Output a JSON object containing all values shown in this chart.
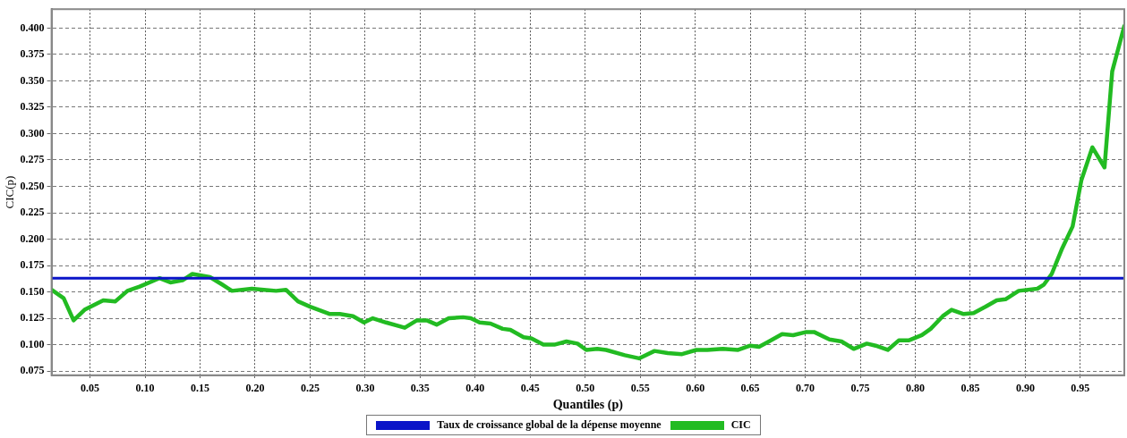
{
  "chart_data": {
    "type": "line",
    "xlabel": "Quantiles (p)",
    "ylabel": "CIC(p)",
    "xlim": [
      0.015,
      0.99
    ],
    "ylim": [
      0.071,
      0.418
    ],
    "xticks": [
      {
        "value": 0.05,
        "label": "0.05"
      },
      {
        "value": 0.1,
        "label": "0.10"
      },
      {
        "value": 0.15,
        "label": "0.15"
      },
      {
        "value": 0.2,
        "label": "0.20"
      },
      {
        "value": 0.25,
        "label": "0.25"
      },
      {
        "value": 0.3,
        "label": "0.30"
      },
      {
        "value": 0.35,
        "label": "0.35"
      },
      {
        "value": 0.4,
        "label": "0.40"
      },
      {
        "value": 0.45,
        "label": "0.45"
      },
      {
        "value": 0.5,
        "label": "0.50"
      },
      {
        "value": 0.55,
        "label": "0.55"
      },
      {
        "value": 0.6,
        "label": "0.60"
      },
      {
        "value": 0.65,
        "label": "0.65"
      },
      {
        "value": 0.7,
        "label": "0.70"
      },
      {
        "value": 0.75,
        "label": "0.75"
      },
      {
        "value": 0.8,
        "label": "0.80"
      },
      {
        "value": 0.85,
        "label": "0.85"
      },
      {
        "value": 0.9,
        "label": "0.90"
      },
      {
        "value": 0.95,
        "label": "0.95"
      }
    ],
    "yticks": [
      {
        "value": 0.075,
        "label": "0.075"
      },
      {
        "value": 0.1,
        "label": "0.100"
      },
      {
        "value": 0.125,
        "label": "0.125"
      },
      {
        "value": 0.15,
        "label": "0.150"
      },
      {
        "value": 0.175,
        "label": "0.175"
      },
      {
        "value": 0.2,
        "label": "0.200"
      },
      {
        "value": 0.225,
        "label": "0.225"
      },
      {
        "value": 0.25,
        "label": "0.250"
      },
      {
        "value": 0.275,
        "label": "0.275"
      },
      {
        "value": 0.3,
        "label": "0.300"
      },
      {
        "value": 0.325,
        "label": "0.325"
      },
      {
        "value": 0.35,
        "label": "0.350"
      },
      {
        "value": 0.375,
        "label": "0.375"
      },
      {
        "value": 0.4,
        "label": "0.400"
      }
    ],
    "grid": true,
    "legend": "bottom",
    "marker": "none",
    "line_style": "solid",
    "series": [
      {
        "name": "Taux de croissance global de la dépense moyenne",
        "color": "#0a14c8",
        "x": [
          0.015,
          0.99
        ],
        "values": [
          0.163,
          0.163
        ]
      },
      {
        "name": "CIC",
        "color": "#22bb22",
        "x": [
          0.015,
          0.026,
          0.035,
          0.045,
          0.062,
          0.073,
          0.084,
          0.095,
          0.113,
          0.123,
          0.134,
          0.143,
          0.159,
          0.17,
          0.179,
          0.197,
          0.208,
          0.219,
          0.228,
          0.239,
          0.25,
          0.268,
          0.277,
          0.289,
          0.299,
          0.307,
          0.319,
          0.336,
          0.347,
          0.356,
          0.365,
          0.376,
          0.389,
          0.396,
          0.404,
          0.414,
          0.425,
          0.432,
          0.444,
          0.451,
          0.462,
          0.472,
          0.483,
          0.493,
          0.501,
          0.511,
          0.519,
          0.536,
          0.549,
          0.563,
          0.575,
          0.588,
          0.601,
          0.611,
          0.625,
          0.639,
          0.65,
          0.658,
          0.667,
          0.679,
          0.689,
          0.701,
          0.708,
          0.722,
          0.733,
          0.744,
          0.756,
          0.764,
          0.775,
          0.785,
          0.794,
          0.806,
          0.814,
          0.825,
          0.833,
          0.844,
          0.853,
          0.864,
          0.874,
          0.882,
          0.894,
          0.911,
          0.917,
          0.924,
          0.933,
          0.943,
          0.951,
          0.961,
          0.972,
          0.979,
          0.99
        ],
        "values": [
          0.152,
          0.144,
          0.123,
          0.133,
          0.142,
          0.141,
          0.151,
          0.155,
          0.163,
          0.159,
          0.161,
          0.167,
          0.164,
          0.157,
          0.151,
          0.153,
          0.152,
          0.151,
          0.152,
          0.141,
          0.136,
          0.129,
          0.129,
          0.127,
          0.121,
          0.125,
          0.121,
          0.116,
          0.123,
          0.123,
          0.119,
          0.125,
          0.126,
          0.125,
          0.121,
          0.12,
          0.115,
          0.114,
          0.107,
          0.106,
          0.1,
          0.1,
          0.103,
          0.101,
          0.095,
          0.096,
          0.095,
          0.09,
          0.087,
          0.094,
          0.092,
          0.091,
          0.095,
          0.095,
          0.096,
          0.095,
          0.099,
          0.098,
          0.103,
          0.11,
          0.109,
          0.112,
          0.112,
          0.105,
          0.103,
          0.096,
          0.101,
          0.099,
          0.095,
          0.104,
          0.104,
          0.109,
          0.115,
          0.127,
          0.133,
          0.129,
          0.13,
          0.136,
          0.142,
          0.143,
          0.151,
          0.153,
          0.157,
          0.167,
          0.19,
          0.212,
          0.256,
          0.287,
          0.268,
          0.359,
          0.402
        ]
      }
    ]
  }
}
